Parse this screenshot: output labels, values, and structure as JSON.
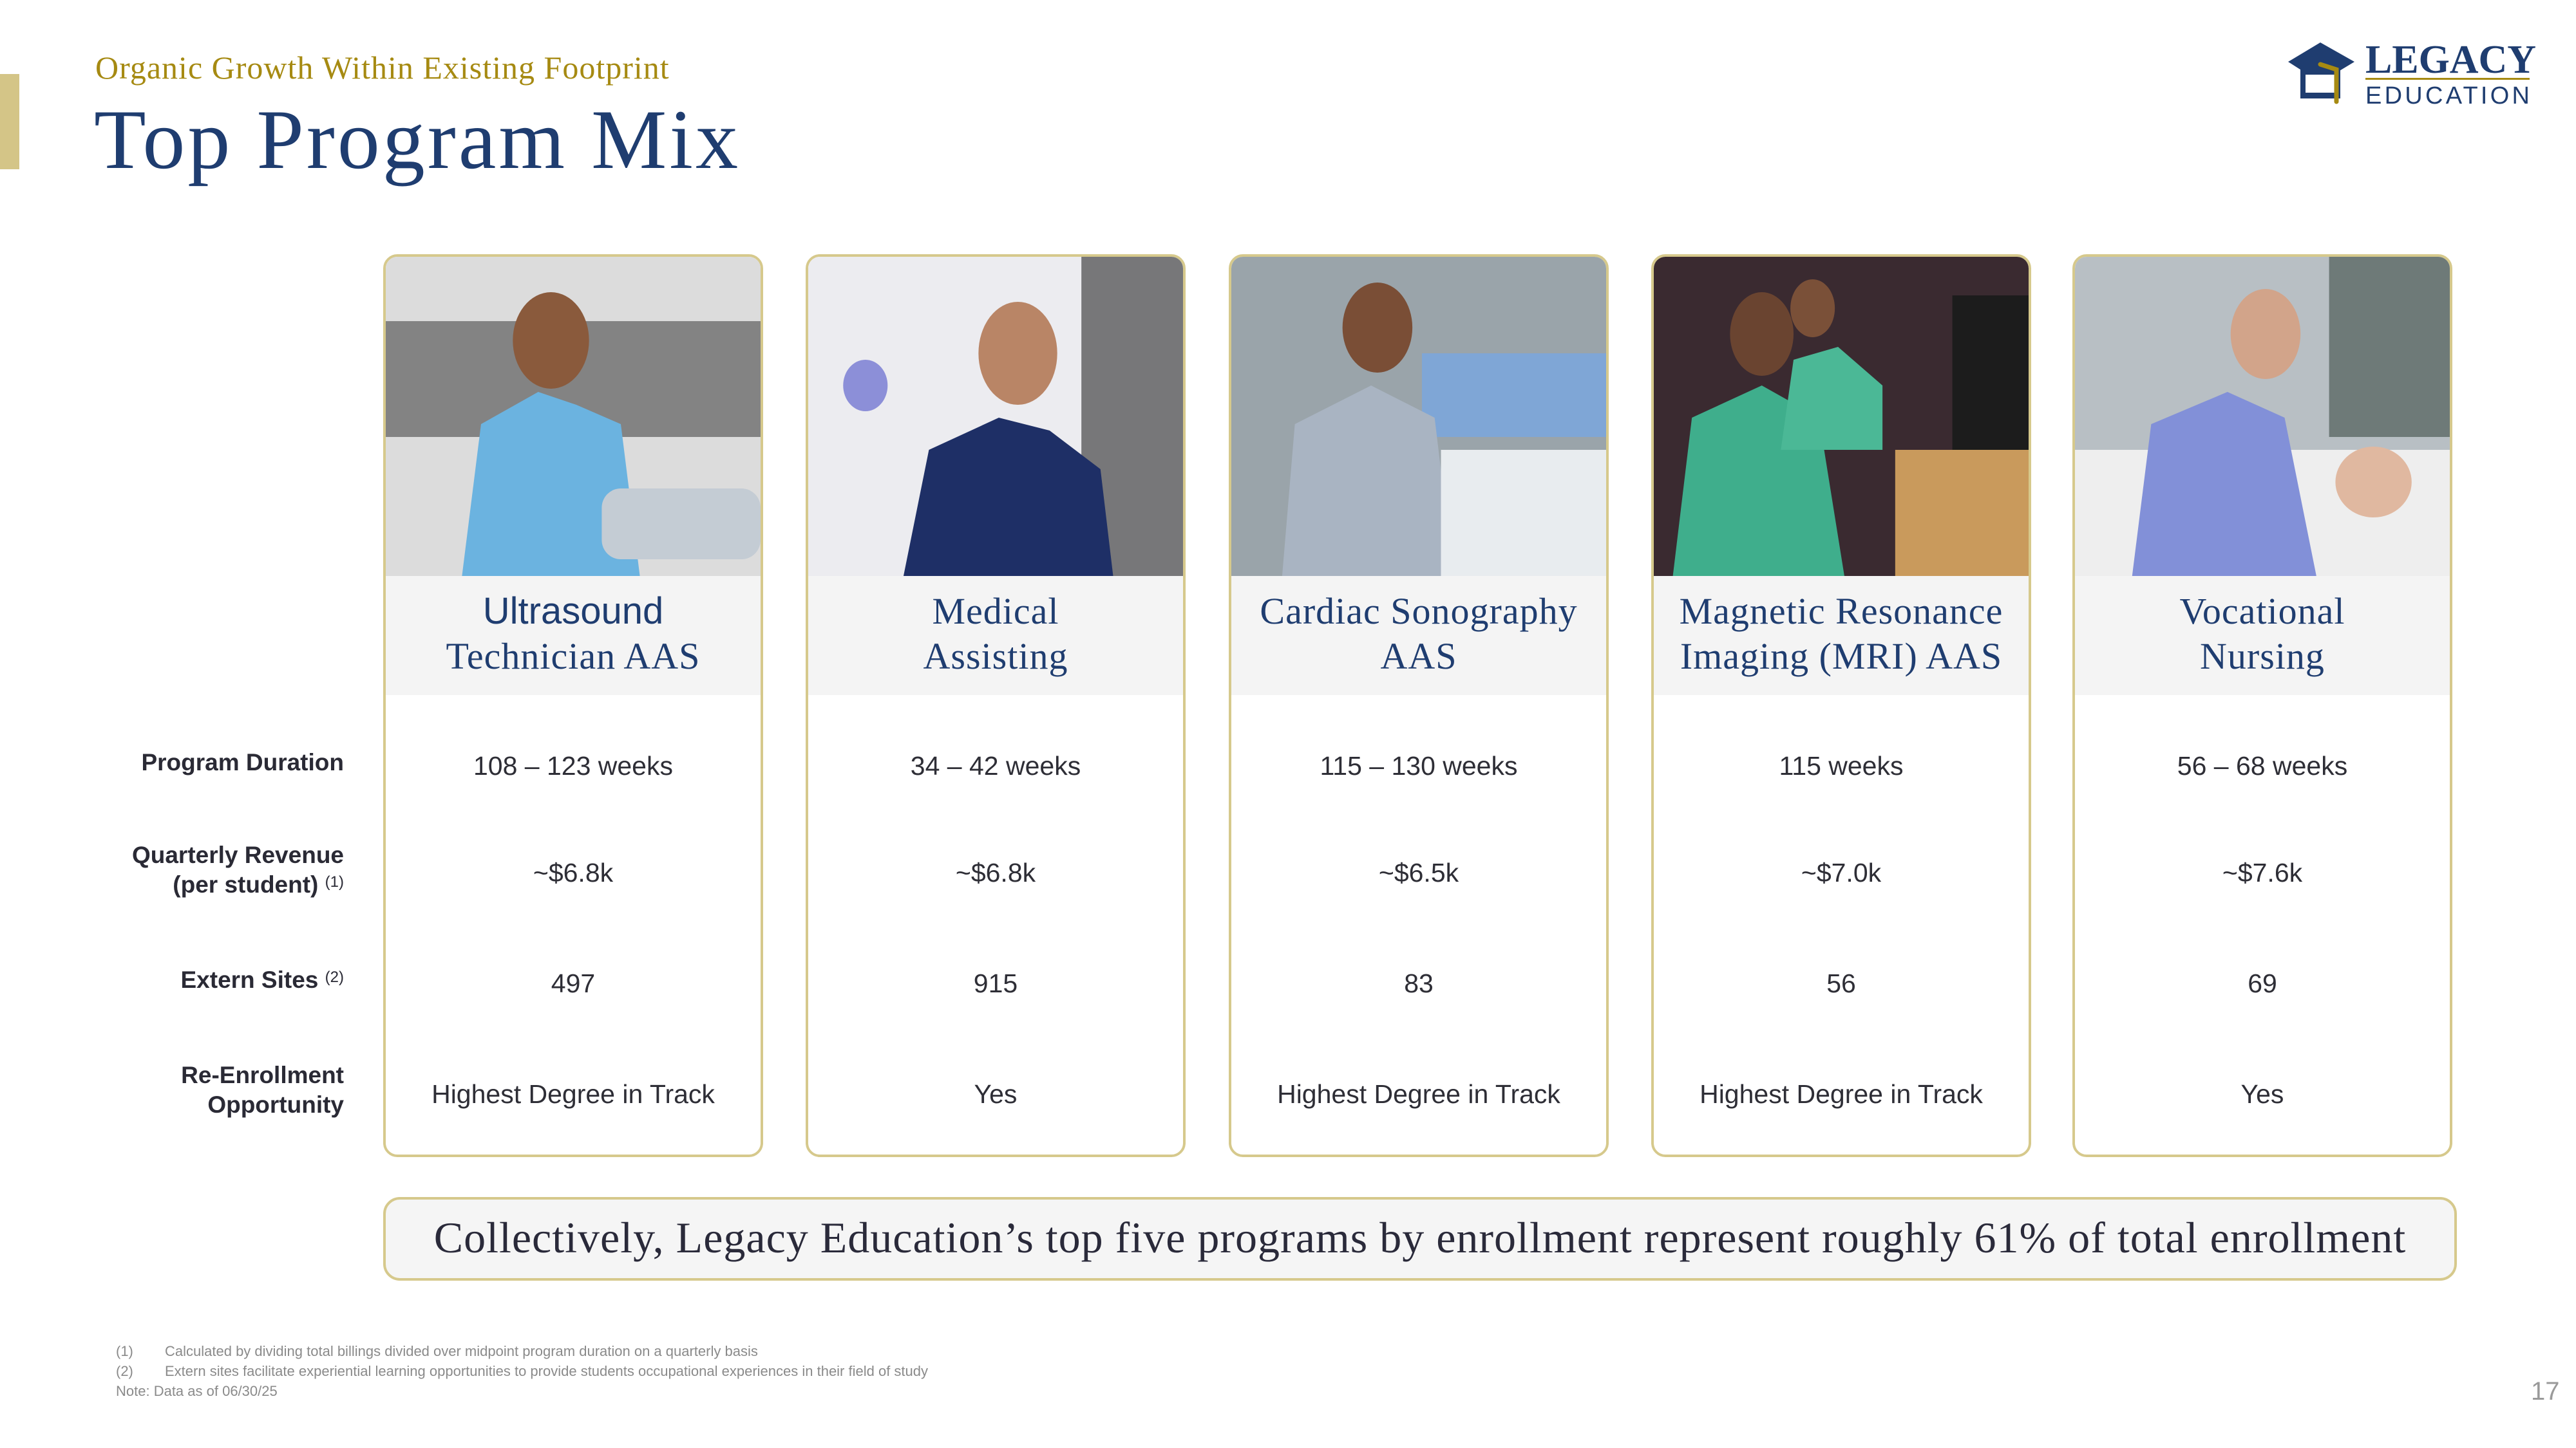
{
  "header": {
    "subtitle": "Organic Growth Within Existing Footprint",
    "title": "Top Program Mix",
    "logo_text": "LEGACY EDUCATION"
  },
  "colors": {
    "navy": "#1f3d70",
    "gold": "#a68a12",
    "border_gold": "#d6c98c"
  },
  "row_labels": [
    {
      "line1": "Program Duration",
      "line2": "",
      "sup": ""
    },
    {
      "line1": "Quarterly Revenue",
      "line2": "(per student)",
      "sup": "(1)"
    },
    {
      "line1": "Extern Sites",
      "line2": "",
      "sup": "(2)"
    },
    {
      "line1": "Re-Enrollment",
      "line2": "Opportunity",
      "sup": ""
    }
  ],
  "programs": [
    {
      "title1": "Ultrasound",
      "title2": "Technician AAS",
      "photo": "student-in-light-blue-scrubs-at-ultrasound-machine",
      "duration": "108 – 123 weeks",
      "revenue": "~$6.8k",
      "extern_sites": "497",
      "reenrollment": "Highest Degree in Track"
    },
    {
      "title1": "Medical",
      "title2": "Assisting",
      "photo": "student-in-navy-scrubs-holding-syringe",
      "duration": "34 – 42 weeks",
      "revenue": "~$6.8k",
      "extern_sites": "915",
      "reenrollment": "Yes"
    },
    {
      "title1": "Cardiac Sonography",
      "title2": "AAS",
      "photo": "student-in-grey-scrubs-with-patient",
      "duration": "115 – 130 weeks",
      "revenue": "~$6.5k",
      "extern_sites": "83",
      "reenrollment": "Highest Degree in Track"
    },
    {
      "title1": "Magnetic Resonance",
      "title2": "Imaging (MRI) AAS",
      "photo": "students-in-green-scrubs-at-computer",
      "duration": "115 weeks",
      "revenue": "~$7.0k",
      "extern_sites": "56",
      "reenrollment": "Highest Degree in Track"
    },
    {
      "title1": "Vocational",
      "title2": "Nursing",
      "photo": "student-in-periwinkle-scrubs-with-stethoscope",
      "duration": "56 – 68 weeks",
      "revenue": "~$7.6k",
      "extern_sites": "69",
      "reenrollment": "Yes"
    }
  ],
  "banner": "Collectively, Legacy Education’s top five programs by enrollment represent roughly 61% of total enrollment",
  "footnotes": [
    {
      "num": "(1)",
      "text": "Calculated by dividing total billings divided over midpoint program duration on a quarterly basis"
    },
    {
      "num": "(2)",
      "text": "Extern sites facilitate experiential learning opportunities to provide students occupational experiences in their field of study"
    }
  ],
  "note": "Note: Data as of 06/30/25",
  "page_number": "17"
}
